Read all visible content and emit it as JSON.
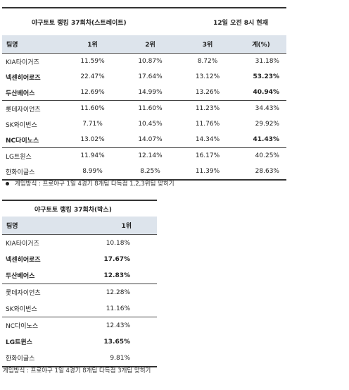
{
  "table1": {
    "title": "야구토토 랭킹 37회차(스트레이트)",
    "date": "12일 오전 8시 현재",
    "headers": [
      "팀명",
      "1위",
      "2위",
      "3위",
      "계(%)"
    ],
    "rows": [
      {
        "team": "KIA타이거즈",
        "v1": "11.59%",
        "v2": "10.87%",
        "v3": "8.72%",
        "total": "31.18%",
        "bold": false,
        "group_start": true
      },
      {
        "team": "넥센히어로즈",
        "v1": "22.47%",
        "v2": "17.64%",
        "v3": "13.12%",
        "total": "53.23%",
        "bold": true,
        "group_start": false
      },
      {
        "team": "두산베어스",
        "v1": "12.69%",
        "v2": "14.99%",
        "v3": "13.26%",
        "total": "40.94%",
        "bold": true,
        "group_start": false
      },
      {
        "team": "롯데자이언츠",
        "v1": "11.60%",
        "v2": "11.60%",
        "v3": "11.23%",
        "total": "34.43%",
        "bold": false,
        "group_start": true
      },
      {
        "team": "SK와이번스",
        "v1": "7.71%",
        "v2": "10.45%",
        "v3": "11.76%",
        "total": "29.92%",
        "bold": false,
        "group_start": false
      },
      {
        "team": "NC다이노스",
        "v1": "13.02%",
        "v2": "14.07%",
        "v3": "14.34%",
        "total": "41.43%",
        "bold": true,
        "group_start": false
      },
      {
        "team": "LG트윈스",
        "v1": "11.94%",
        "v2": "12.14%",
        "v3": "16.17%",
        "total": "40.25%",
        "bold": false,
        "group_start": true
      },
      {
        "team": "한화이글스",
        "v1": "8.99%",
        "v2": "8.25%",
        "v3": "11.39%",
        "total": "28.63%",
        "bold": false,
        "group_start": false
      }
    ],
    "note": "게임방식 : 프로야구 1일 4경기 8개팀 다득점 1,2,3위팀 맞히기"
  },
  "table2": {
    "title": "야구토토 랭킹 37회차(박스)",
    "headers": [
      "팀명",
      "1위"
    ],
    "rows": [
      {
        "team": "KIA타이거즈",
        "v1": "10.18%",
        "bold": false,
        "group_start": true
      },
      {
        "team": "넥센히어로즈",
        "v1": "17.67%",
        "bold": true,
        "group_start": false
      },
      {
        "team": "두산베어스",
        "v1": "12.83%",
        "bold": true,
        "group_start": false
      },
      {
        "team": "롯데자이언츠",
        "v1": "12.28%",
        "bold": false,
        "group_start": true
      },
      {
        "team": "SK와이번스",
        "v1": "11.16%",
        "bold": false,
        "group_start": false
      },
      {
        "team": "NC다이노스",
        "v1": "12.43%",
        "bold": false,
        "group_start": true
      },
      {
        "team": "LG트윈스",
        "v1": "13.65%",
        "bold": true,
        "group_start": false
      },
      {
        "team": "한화이글스",
        "v1": "9.81%",
        "bold": false,
        "group_start": false
      }
    ],
    "note": "게임방식 : 프로야구 1일 4경기 8개팀 다득점 3개팀 맞히기"
  }
}
